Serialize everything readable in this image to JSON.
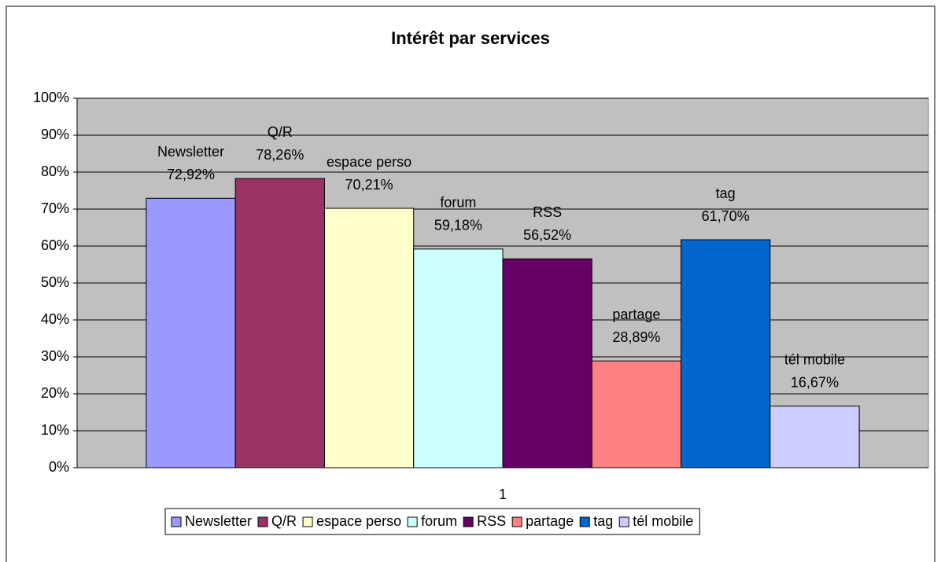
{
  "chart_data": {
    "type": "bar",
    "title": "Intérêt par services",
    "categories": [
      "1"
    ],
    "series": [
      {
        "name": "Newsletter",
        "color": "#9999ff",
        "values": [
          72.92
        ],
        "value_labels": [
          "72,92%"
        ]
      },
      {
        "name": "Q/R",
        "color": "#993366",
        "values": [
          78.26
        ],
        "value_labels": [
          "78,26%"
        ]
      },
      {
        "name": "espace perso",
        "color": "#ffffcc",
        "values": [
          70.21
        ],
        "value_labels": [
          "70,21%"
        ]
      },
      {
        "name": "forum",
        "color": "#ccffff",
        "values": [
          59.18
        ],
        "value_labels": [
          "59,18%"
        ]
      },
      {
        "name": "RSS",
        "color": "#660066",
        "values": [
          56.52
        ],
        "value_labels": [
          "56,52%"
        ]
      },
      {
        "name": "partage",
        "color": "#ff8080",
        "values": [
          28.89
        ],
        "value_labels": [
          "28,89%"
        ]
      },
      {
        "name": "tag",
        "color": "#0066cc",
        "values": [
          61.7
        ],
        "value_labels": [
          "61,70%"
        ]
      },
      {
        "name": "tél mobile",
        "color": "#ccccff",
        "values": [
          16.67
        ],
        "value_labels": [
          "16,67%"
        ]
      }
    ],
    "ylim": [
      0,
      100
    ],
    "yticks": [
      {
        "value": 0,
        "label": "0%"
      },
      {
        "value": 10,
        "label": "10%"
      },
      {
        "value": 20,
        "label": "20%"
      },
      {
        "value": 30,
        "label": "30%"
      },
      {
        "value": 40,
        "label": "40%"
      },
      {
        "value": 50,
        "label": "50%"
      },
      {
        "value": 60,
        "label": "60%"
      },
      {
        "value": 70,
        "label": "70%"
      },
      {
        "value": 80,
        "label": "80%"
      },
      {
        "value": 90,
        "label": "90%"
      },
      {
        "value": 100,
        "label": "100%"
      }
    ],
    "grid": true,
    "legend": "bottom",
    "plot_background": "#c0c0c0"
  }
}
